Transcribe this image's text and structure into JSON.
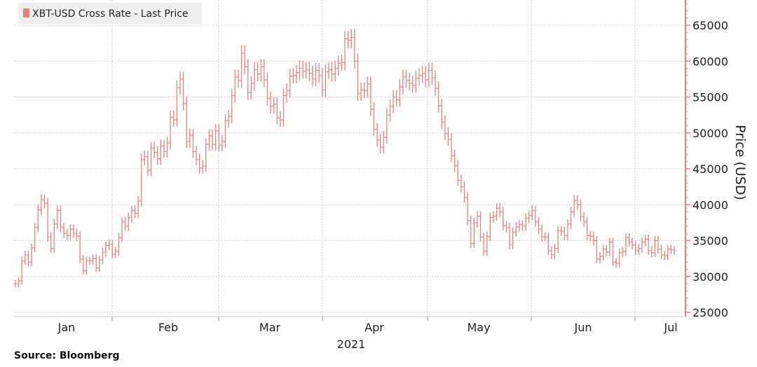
{
  "colors": {
    "series": "#e8807a",
    "axis": "#e8807a",
    "grid": "#d0d0d0",
    "legend_bg": "#efefef"
  },
  "source_text": "Source: Bloomberg",
  "chart_data": {
    "type": "ohlc",
    "title": "",
    "xlabel": "",
    "ylabel": "Price (USD)",
    "year_label": "2021",
    "ylim": [
      25000,
      68000
    ],
    "y_ticks": [
      25000,
      30000,
      35000,
      40000,
      45000,
      50000,
      55000,
      60000,
      65000
    ],
    "x_month_labels": [
      "Jan",
      "Feb",
      "Mar",
      "Apr",
      "May",
      "Jun",
      "Jul"
    ],
    "grid": "vertical month boundaries and horizontal at each y tick",
    "legend": {
      "placement": "top-left",
      "entries": [
        "XBT-USD Cross Rate - Last Price"
      ]
    },
    "series": [
      {
        "name": "XBT-USD Cross Rate - Last Price",
        "close": [
          29000,
          29400,
          32200,
          33000,
          32000,
          34000,
          36800,
          39300,
          40700,
          40200,
          35500,
          33900,
          37300,
          39200,
          36800,
          36000,
          35700,
          36600,
          36000,
          35600,
          32400,
          30800,
          32200,
          32200,
          32500,
          31200,
          32300,
          33400,
          34300,
          34500,
          33100,
          33500,
          35400,
          37600,
          37000,
          38200,
          39200,
          38800,
          40500,
          46300,
          46700,
          44800,
          47900,
          47300,
          46400,
          48200,
          47400,
          48600,
          52200,
          51800,
          56300,
          57500,
          54100,
          48800,
          49700,
          47400,
          46300,
          45100,
          45400,
          48400,
          49600,
          48400,
          50300,
          48300,
          48800,
          51700,
          52300,
          55200,
          57800,
          57300,
          61100,
          59200,
          55600,
          56900,
          58800,
          58200,
          59200,
          57400,
          54800,
          53700,
          54000,
          52100,
          51800,
          55200,
          55900,
          57900,
          58000,
          58400,
          59000,
          58600,
          58800,
          58300,
          57500,
          58700,
          58000,
          56000,
          58500,
          58800,
          58200,
          59000,
          59700,
          59800,
          63100,
          62900,
          63300,
          60000,
          55500,
          56000,
          55900,
          56800,
          53300,
          50500,
          49000,
          48000,
          49400,
          52500,
          53700,
          55000,
          54600,
          56400,
          57800,
          57300,
          56900,
          56600,
          57600,
          58000,
          58300,
          57400,
          58700,
          57700,
          56200,
          53800,
          51500,
          49900,
          49100,
          46800,
          45400,
          43400,
          42500,
          41000,
          37800,
          34600,
          37500,
          38400,
          35500,
          33500,
          35600,
          38200,
          38400,
          39500,
          39000,
          37100,
          36800,
          34400,
          36200,
          36900,
          37200,
          37000,
          38100,
          38500,
          39200,
          37600,
          36600,
          35500,
          35500,
          33600,
          33000,
          33900,
          36400,
          36300,
          35700,
          37300,
          39000,
          40600,
          40000,
          38300,
          37600,
          35700,
          35600,
          35000,
          32400,
          32800,
          33800,
          33400,
          34800,
          32000,
          31800,
          33300,
          33500,
          35400,
          34800,
          34400,
          33600,
          33900,
          34800,
          35200,
          33600,
          33300,
          35000,
          33800,
          33000,
          32900,
          33800,
          33700,
          33600
        ]
      }
    ]
  }
}
